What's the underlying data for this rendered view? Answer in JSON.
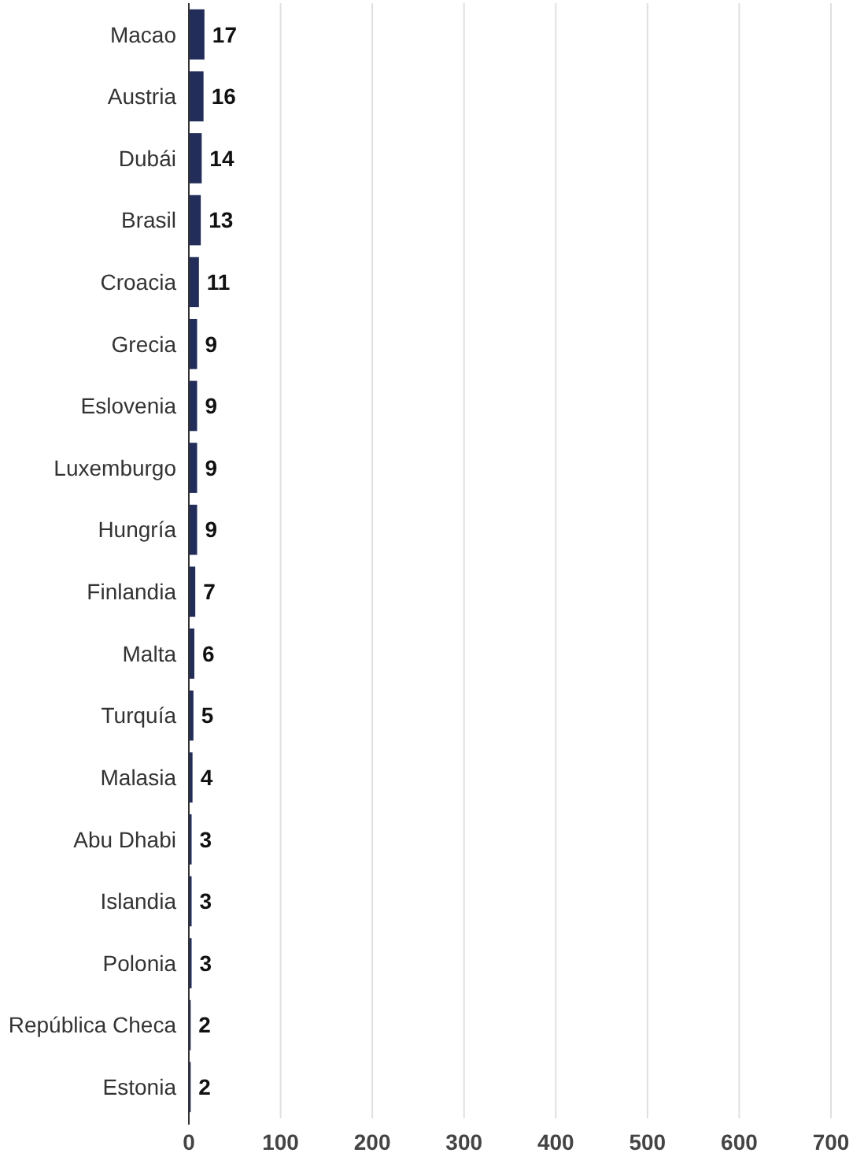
{
  "chart_data": {
    "type": "bar",
    "orientation": "horizontal",
    "categories": [
      "Macao",
      "Austria",
      "Dubái",
      "Brasil",
      "Croacia",
      "Grecia",
      "Eslovenia",
      "Luxemburgo",
      "Hungría",
      "Finlandia",
      "Malta",
      "Turquía",
      "Malasia",
      "Abu Dhabi",
      "Islandia",
      "Polonia",
      "República Checa",
      "Estonia"
    ],
    "values": [
      17,
      16,
      14,
      13,
      11,
      9,
      9,
      9,
      9,
      7,
      6,
      5,
      4,
      3,
      3,
      3,
      2,
      2
    ],
    "color": "#222d5a",
    "xlim": [
      0,
      700
    ],
    "xticks": [
      0,
      100,
      200,
      300,
      400,
      500,
      600,
      700
    ],
    "grid": "x",
    "data_labels": true
  }
}
